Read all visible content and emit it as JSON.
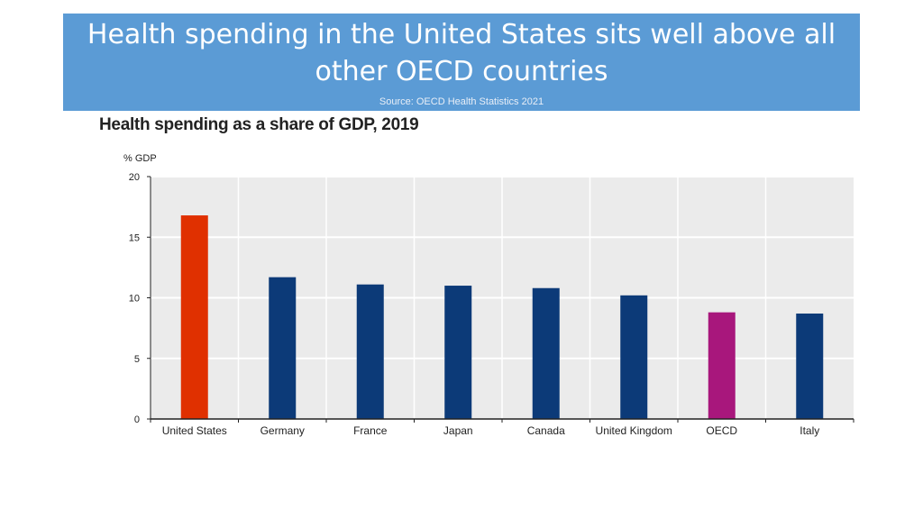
{
  "header": {
    "title": "Health spending in the United States sits well above all other OECD countries",
    "source": "Source: OECD Health Statistics 2021"
  },
  "chart_data": {
    "type": "bar",
    "title": "Health spending as a share of GDP, 2019",
    "ylabel": "% GDP",
    "xlabel": "",
    "ylim": [
      0,
      20
    ],
    "yticks": [
      0,
      5,
      10,
      15,
      20
    ],
    "grid": true,
    "categories": [
      "United States",
      "Germany",
      "France",
      "Japan",
      "Canada",
      "United Kingdom",
      "OECD",
      "Italy"
    ],
    "values": [
      16.8,
      11.7,
      11.1,
      11.0,
      10.8,
      10.2,
      8.8,
      8.7
    ],
    "colors": [
      "#e03000",
      "#0c3a78",
      "#0c3a78",
      "#0c3a78",
      "#0c3a78",
      "#0c3a78",
      "#a8177c",
      "#0c3a78"
    ],
    "plot_background": "#ebebeb"
  }
}
